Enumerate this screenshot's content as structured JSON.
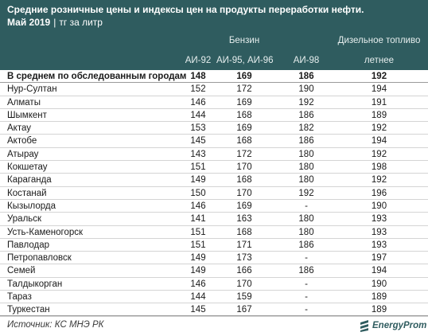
{
  "title": "Средние розничные цены и индексы цен на продукты переработки нефти.",
  "subtitle": {
    "period": "Май 2019",
    "separator": "|",
    "unit": "тг за литр"
  },
  "header": {
    "group_gasoline": "Бензин",
    "group_diesel": "Дизельное топливо",
    "col_ai92": "АИ-92",
    "col_ai95": "АИ-95, АИ-96",
    "col_ai98": "АИ-98",
    "col_diesel_summer": "летнее"
  },
  "rows": [
    {
      "city": "В среднем по обследованным городам",
      "ai92": "148",
      "ai95": "169",
      "ai98": "186",
      "diesel": "192"
    },
    {
      "city": "Нур-Султан",
      "ai92": "152",
      "ai95": "172",
      "ai98": "190",
      "diesel": "194"
    },
    {
      "city": "Алматы",
      "ai92": "146",
      "ai95": "169",
      "ai98": "192",
      "diesel": "191"
    },
    {
      "city": "Шымкент",
      "ai92": "144",
      "ai95": "168",
      "ai98": "186",
      "diesel": "189"
    },
    {
      "city": "Актау",
      "ai92": "153",
      "ai95": "169",
      "ai98": "182",
      "diesel": "192"
    },
    {
      "city": "Актобе",
      "ai92": "145",
      "ai95": "168",
      "ai98": "186",
      "diesel": "194"
    },
    {
      "city": "Атырау",
      "ai92": "143",
      "ai95": "172",
      "ai98": "180",
      "diesel": "192"
    },
    {
      "city": "Кокшетау",
      "ai92": "151",
      "ai95": "170",
      "ai98": "180",
      "diesel": "198"
    },
    {
      "city": "Караганда",
      "ai92": "149",
      "ai95": "168",
      "ai98": "180",
      "diesel": "192"
    },
    {
      "city": "Костанай",
      "ai92": "150",
      "ai95": "170",
      "ai98": "192",
      "diesel": "196"
    },
    {
      "city": "Кызылорда",
      "ai92": "146",
      "ai95": "169",
      "ai98": "-",
      "diesel": "190"
    },
    {
      "city": "Уральск",
      "ai92": "141",
      "ai95": "163",
      "ai98": "180",
      "diesel": "193"
    },
    {
      "city": "Усть-Каменогорск",
      "ai92": "151",
      "ai95": "168",
      "ai98": "180",
      "diesel": "193"
    },
    {
      "city": "Павлодар",
      "ai92": "151",
      "ai95": "171",
      "ai98": "186",
      "diesel": "193"
    },
    {
      "city": "Петропавловск",
      "ai92": "149",
      "ai95": "173",
      "ai98": "-",
      "diesel": "197"
    },
    {
      "city": "Семей",
      "ai92": "149",
      "ai95": "166",
      "ai98": "186",
      "diesel": "194"
    },
    {
      "city": "Талдыкорган",
      "ai92": "146",
      "ai95": "170",
      "ai98": "-",
      "diesel": "190"
    },
    {
      "city": "Тараз",
      "ai92": "144",
      "ai95": "159",
      "ai98": "-",
      "diesel": "189"
    },
    {
      "city": "Туркестан",
      "ai92": "145",
      "ai95": "167",
      "ai98": "-",
      "diesel": "189"
    }
  ],
  "footer": {
    "source": "Источник: КС МНЭ РК",
    "logo_text": "EnergyProm"
  },
  "colors": {
    "header_bg": "#2f5c5f",
    "header_text": "#ffffff",
    "logo": "#2f5c5f"
  }
}
